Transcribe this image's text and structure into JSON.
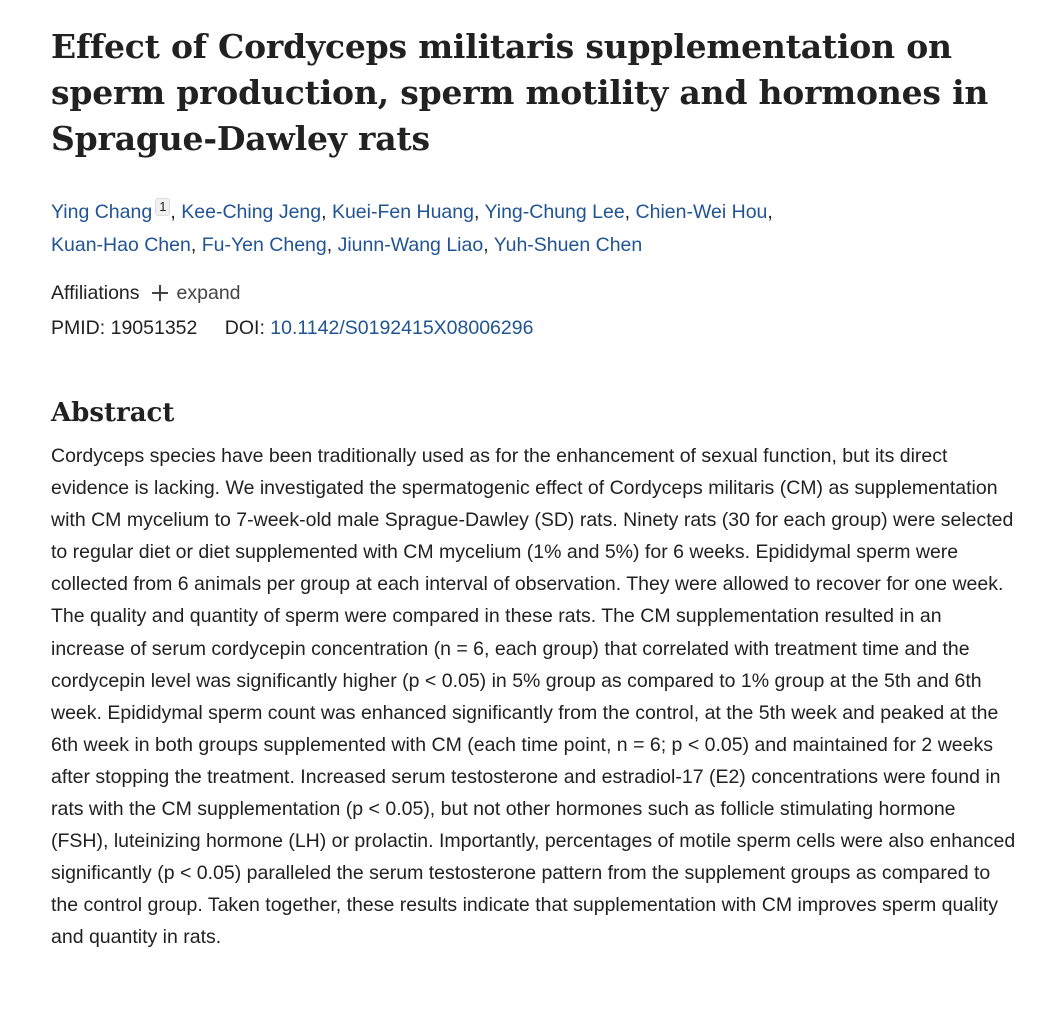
{
  "article": {
    "title": "Effect of Cordyceps militaris supplementation on sperm production, sperm motility and hormones in Sprague-Dawley rats",
    "authors": [
      {
        "name": "Ying Chang",
        "affiliation": "1"
      },
      {
        "name": "Kee-Ching Jeng"
      },
      {
        "name": "Kuei-Fen Huang"
      },
      {
        "name": "Ying-Chung Lee"
      },
      {
        "name": "Chien-Wei Hou"
      },
      {
        "name": "Kuan-Hao Chen"
      },
      {
        "name": "Fu-Yen Cheng"
      },
      {
        "name": "Jiunn-Wang Liao"
      },
      {
        "name": "Yuh-Shuen Chen"
      }
    ],
    "affiliations_label": "Affiliations",
    "expand_label": "expand",
    "pmid_label": "PMID:",
    "pmid": "19051352",
    "doi_label": "DOI:",
    "doi": "10.1142/S0192415X08006296",
    "abstract_heading": "Abstract",
    "abstract": "Cordyceps species have been traditionally used as for the enhancement of sexual function, but its direct evidence is lacking. We investigated the spermatogenic effect of Cordyceps militaris (CM) as supplementation with CM mycelium to 7-week-old male Sprague-Dawley (SD) rats. Ninety rats (30 for each group) were selected to regular diet or diet supplemented with CM mycelium (1% and 5%) for 6 weeks. Epididymal sperm were collected from 6 animals per group at each interval of observation. They were allowed to recover for one week. The quality and quantity of sperm were compared in these rats. The CM supplementation resulted in an increase of serum cordycepin concentration (n = 6, each group) that correlated with treatment time and the cordycepin level was significantly higher (p < 0.05) in 5% group as compared to 1% group at the 5th and 6th week. Epididymal sperm count was enhanced significantly from the control, at the 5th week and peaked at the 6th week in both groups supplemented with CM (each time point, n = 6; p < 0.05) and maintained for 2 weeks after stopping the treatment. Increased serum testosterone and estradiol-17 (E2) concentrations were found in rats with the CM supplementation (p < 0.05), but not other hormones such as follicle stimulating hormone (FSH), luteinizing hormone (LH) or prolactin. Importantly, percentages of motile sperm cells were also enhanced significantly (p < 0.05) paralleled the serum testosterone pattern from the supplement groups as compared to the control group. Taken together, these results indicate that supplementation with CM improves sperm quality and quantity in rats."
  },
  "colors": {
    "link": "#205493",
    "text": "#212121"
  }
}
